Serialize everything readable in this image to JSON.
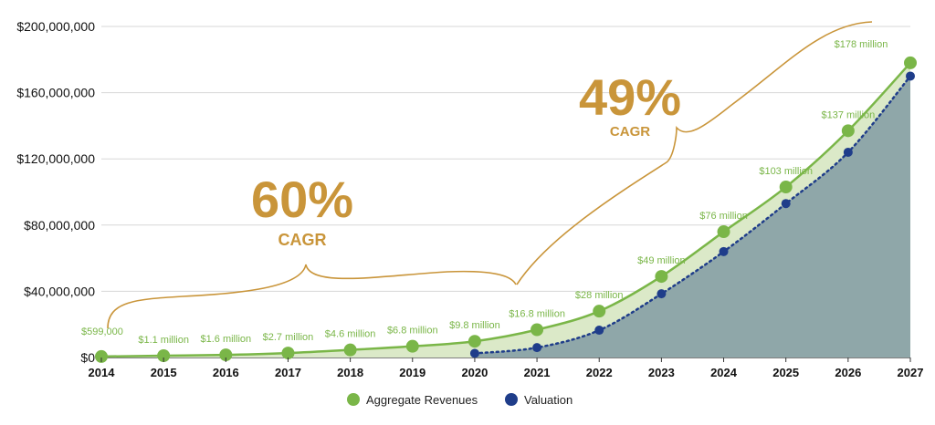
{
  "chart_data": {
    "type": "line",
    "x": [
      2014,
      2015,
      2016,
      2017,
      2018,
      2019,
      2020,
      2021,
      2022,
      2023,
      2024,
      2025,
      2026,
      2027
    ],
    "ylim": [
      0,
      200000000
    ],
    "yticks": [
      0,
      40000000,
      80000000,
      120000000,
      160000000,
      200000000
    ],
    "ytick_labels": [
      "$0",
      "$40,000,000",
      "$80,000,000",
      "$120,000,000",
      "$160,000,000",
      "$200,000,000"
    ],
    "grid": true,
    "legend_position": "bottom-center",
    "series": [
      {
        "name": "Aggregate Revenues",
        "color": "#7ab648",
        "x": [
          2014,
          2015,
          2016,
          2017,
          2018,
          2019,
          2020,
          2021,
          2022,
          2023,
          2024,
          2025,
          2026,
          2027
        ],
        "values": [
          599000,
          1100000,
          1600000,
          2700000,
          4600000,
          6800000,
          9800000,
          16800000,
          28000000,
          49000000,
          76000000,
          103000000,
          137000000,
          178000000
        ],
        "labels": [
          "$599,000",
          "$1.1 million",
          "$1.6 million",
          "$2.7 million",
          "$4.6 million",
          "$6.8 million",
          "$9.8 million",
          "$16.8 million",
          "$28 million",
          "$49 million",
          "$76 million",
          "$103 million",
          "$137 million",
          "$178 million"
        ]
      },
      {
        "name": "Valuation",
        "color": "#1f3d8a",
        "x": [
          2020,
          2021,
          2022,
          2023,
          2024,
          2025,
          2026,
          2027
        ],
        "values": [
          2500000,
          6000000,
          16500000,
          38500000,
          64000000,
          93000000,
          124000000,
          170000000
        ]
      }
    ],
    "annotations": [
      {
        "value": "60%",
        "sub": "CAGR",
        "from_x": 2014,
        "to_x": 2020.7
      },
      {
        "value": "49%",
        "sub": "CAGR",
        "from_x": 2020.7,
        "to_x": 2026.4
      }
    ]
  }
}
